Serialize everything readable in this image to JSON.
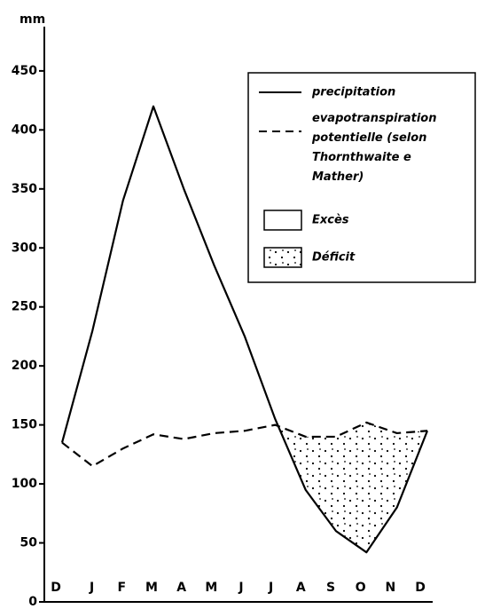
{
  "chart_data": {
    "type": "line",
    "y_label": "mm",
    "categories": [
      "D",
      "J",
      "F",
      "M",
      "A",
      "M",
      "J",
      "J",
      "A",
      "S",
      "O",
      "N",
      "D"
    ],
    "series": [
      {
        "name": "precipitation",
        "color": "#000",
        "style": "solid",
        "values": [
          135,
          230,
          340,
          420,
          350,
          285,
          225,
          155,
          95,
          60,
          42,
          80,
          145
        ]
      },
      {
        "name": "evapotranspiration potentielle (selon Thornthwaite e Mather)",
        "color": "#000",
        "style": "dashed",
        "values": [
          135,
          115,
          130,
          142,
          138,
          143,
          145,
          150,
          140,
          140,
          152,
          143,
          145
        ]
      }
    ],
    "areas": [
      "Excès",
      "Déficit"
    ],
    "ylim": [
      0,
      480
    ],
    "yticks": [
      0,
      50,
      100,
      150,
      200,
      250,
      300,
      350,
      400,
      450
    ],
    "legend": "upper right"
  }
}
